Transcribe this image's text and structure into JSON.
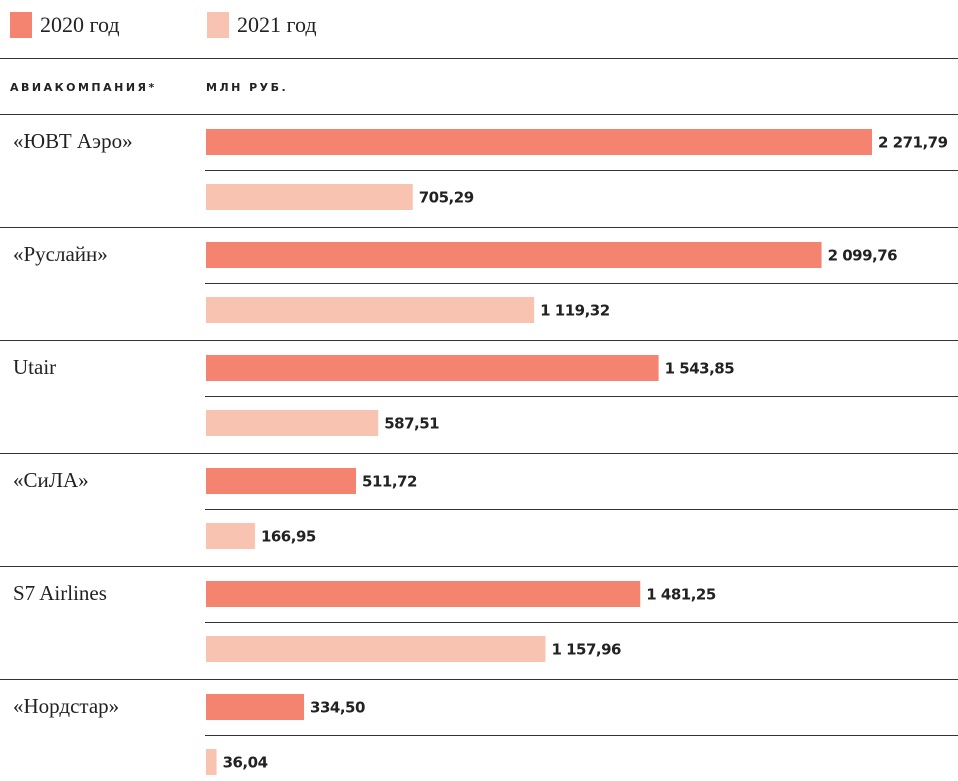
{
  "chart_data": {
    "type": "bar",
    "column_headers": [
      "АВИАКОМПАНИЯ*",
      "МЛН РУБ."
    ],
    "categories": [
      "«ЮВТ Аэро»",
      "«Руслайн»",
      "Utair",
      "«СиЛА»",
      "S7 Airlines",
      "«Нордстар»"
    ],
    "series": [
      {
        "name": "2020 год",
        "color": "#f4846f",
        "values": [
          2271.79,
          2099.76,
          1543.85,
          511.72,
          1481.25,
          334.5
        ],
        "value_labels": [
          "2 271,79",
          "2 099,76",
          "1 543,85",
          "511,72",
          "1 481,25",
          "334,50"
        ]
      },
      {
        "name": "2021 год",
        "color": "#f9c3b2",
        "values": [
          705.29,
          1119.32,
          587.51,
          166.95,
          1157.96,
          36.04
        ],
        "value_labels": [
          "705,29",
          "1 119,32",
          "587,51",
          "166,95",
          "1 157,96",
          "36,04"
        ]
      }
    ]
  }
}
